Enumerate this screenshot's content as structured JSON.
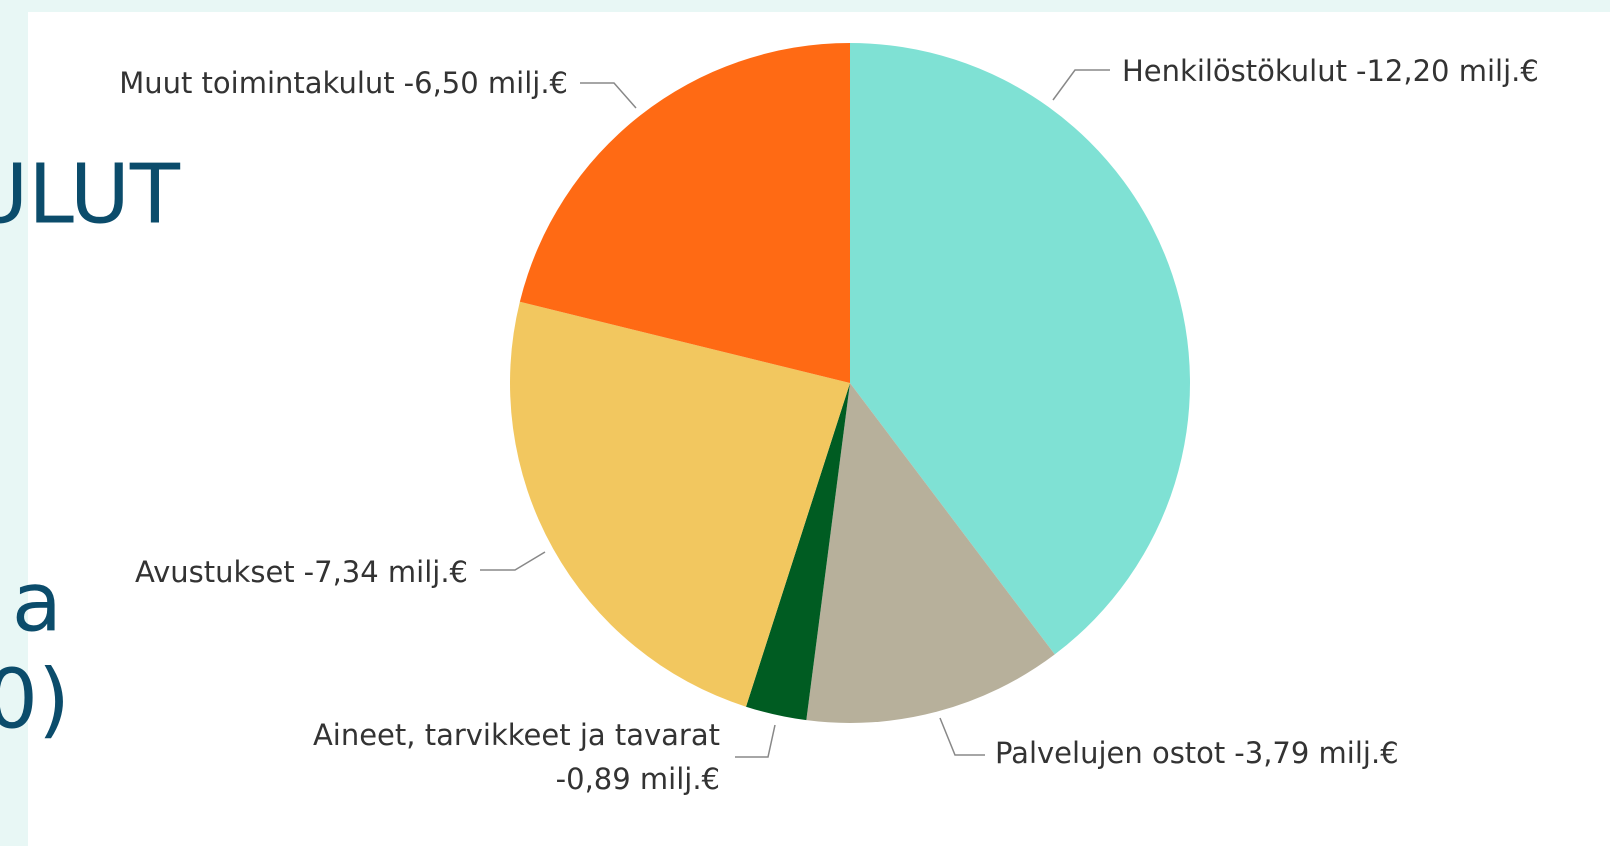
{
  "slide_text": [
    "ULUT",
    "a",
    "0)"
  ],
  "chart_data": {
    "type": "pie",
    "categories": [
      "Henkilöstökulut",
      "Palvelujen ostot",
      "Aineet, tarvikkeet ja tavarat",
      "Avustukset",
      "Muut toimintakulut"
    ],
    "values": [
      -12.2,
      -3.79,
      -0.89,
      -7.34,
      -6.5
    ],
    "value_labels": [
      "-12,20 milj.€",
      "-3,79 milj.€",
      "-0,89 milj.€",
      "-7,34 milj.€",
      "-6,50 milj.€"
    ],
    "colors": [
      "#7fe1d4",
      "#b7b09b",
      "#005c22",
      "#f2c75f",
      "#ff6a14"
    ]
  }
}
